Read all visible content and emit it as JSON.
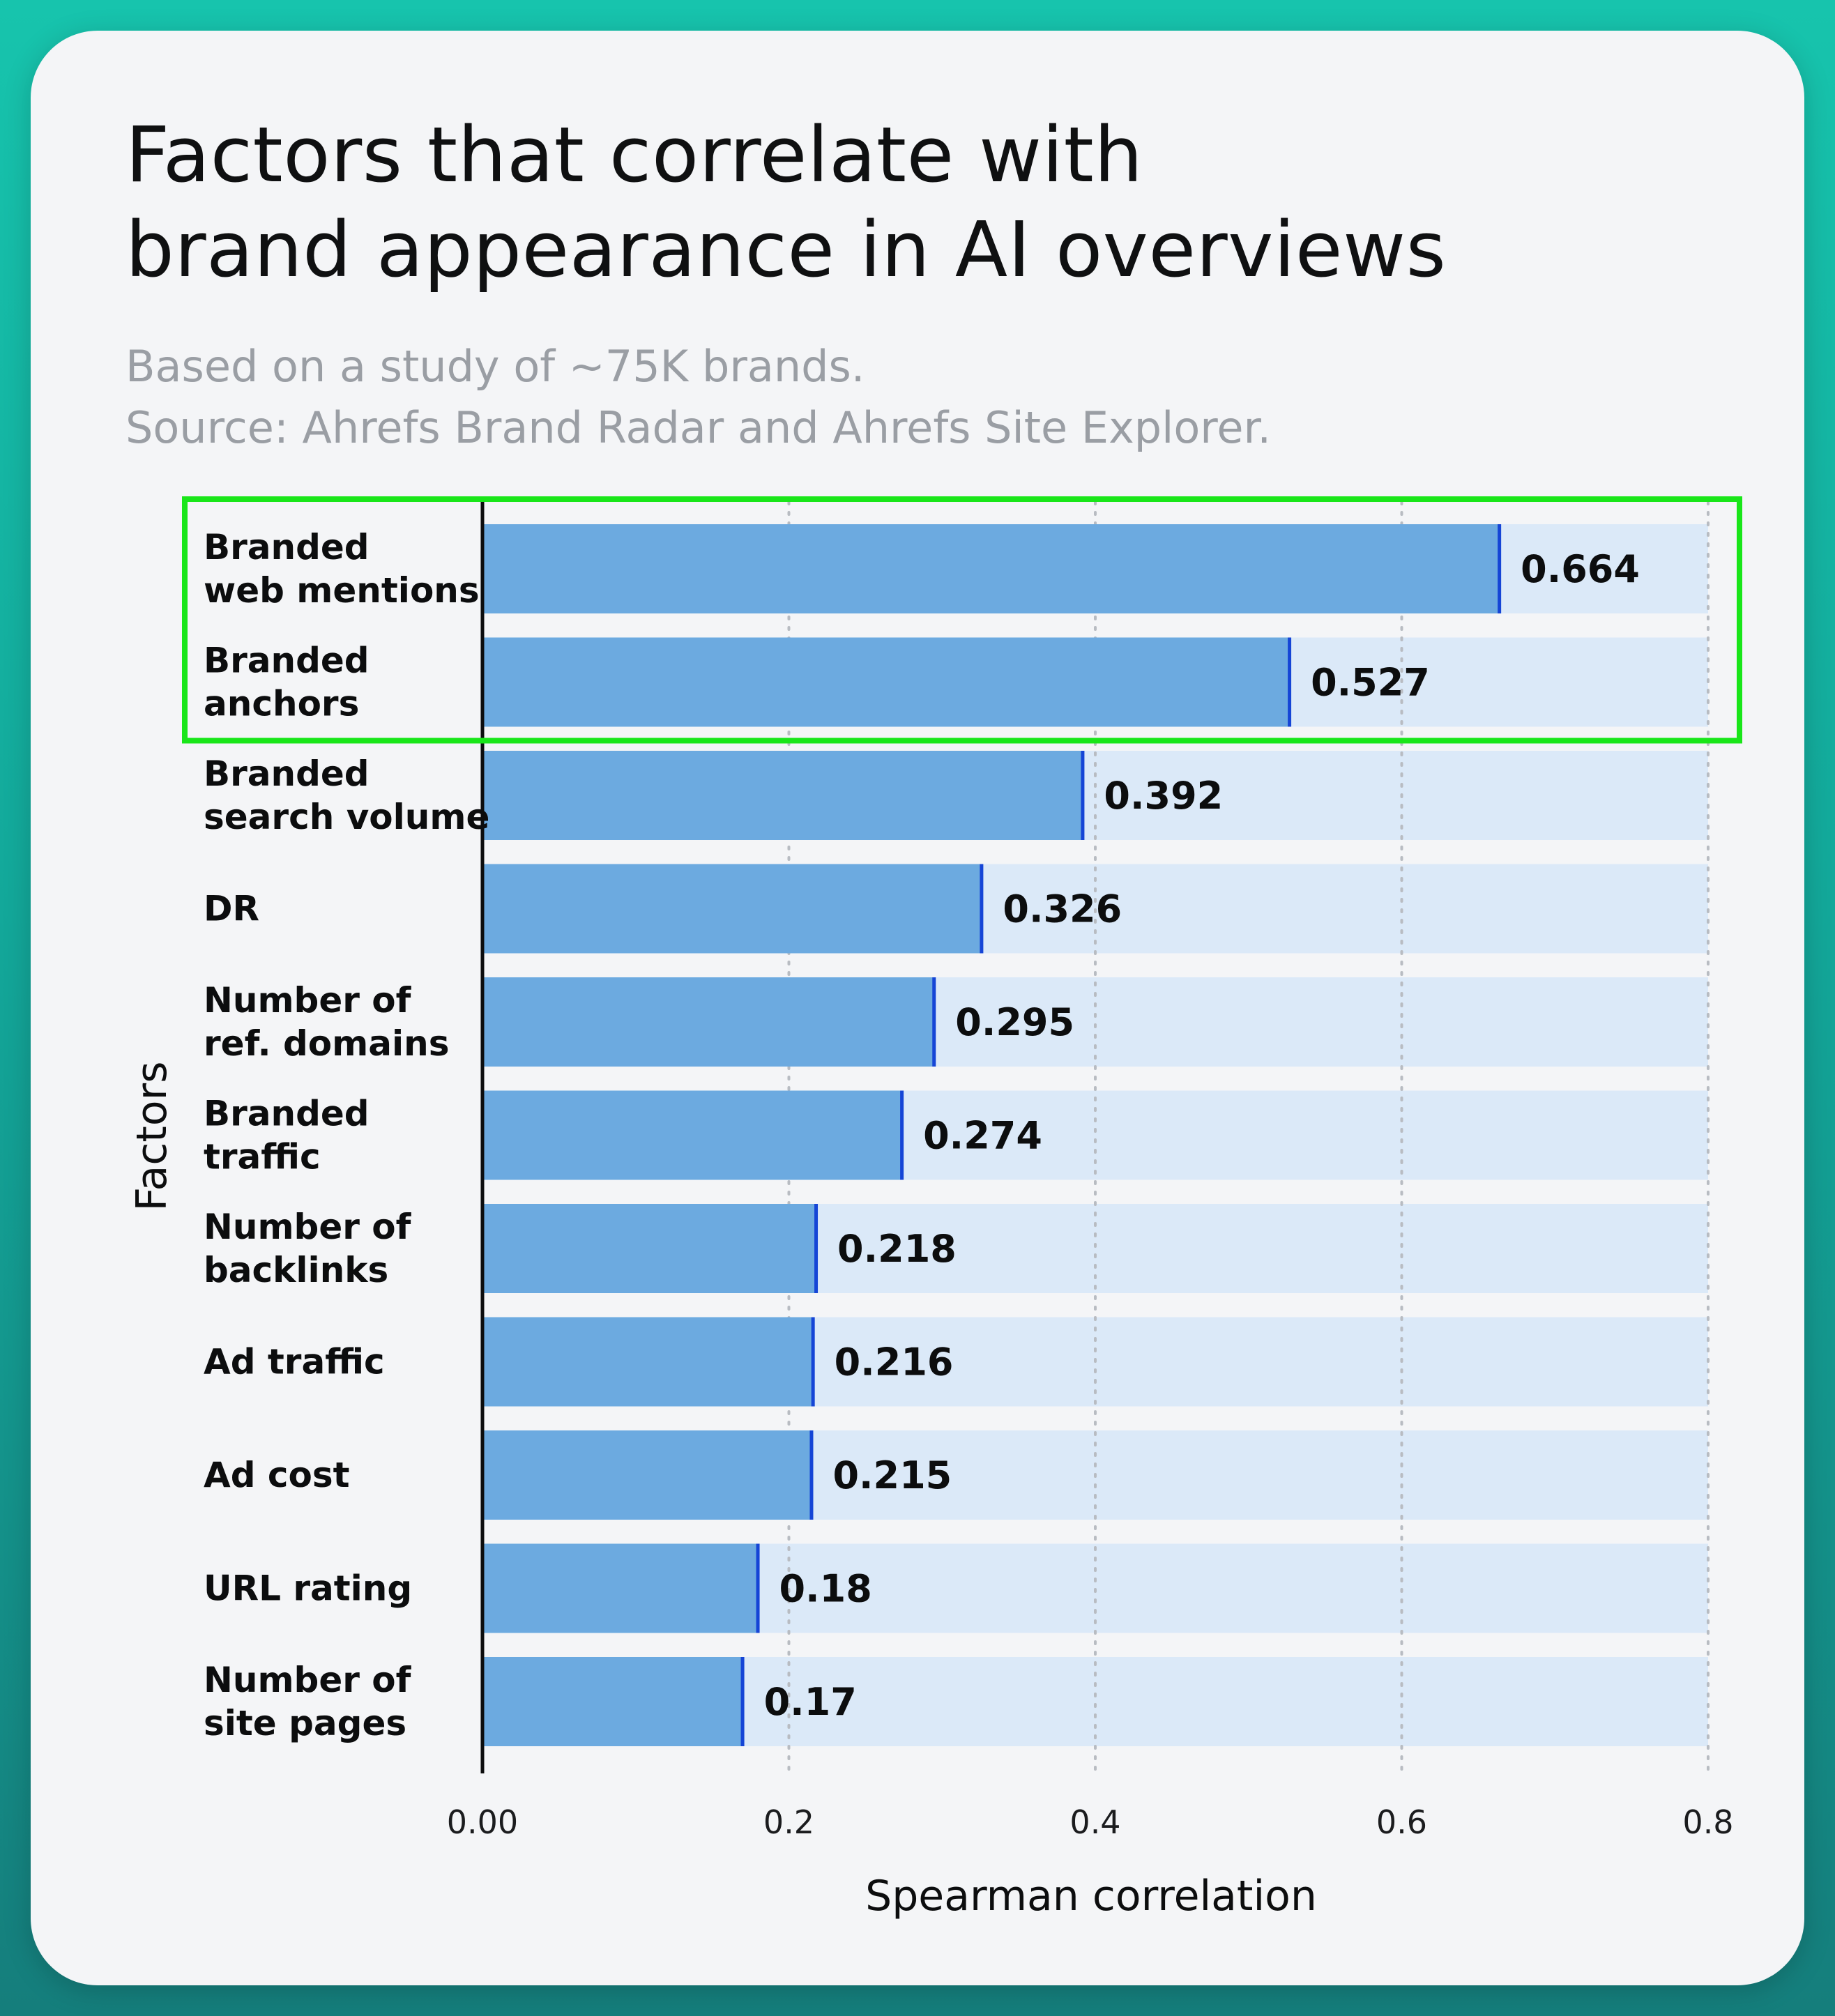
{
  "chart_data": {
    "type": "bar",
    "orientation": "horizontal",
    "title": "Factors that correlate with brand appearance in AI overviews",
    "title_lines": [
      "Factors that correlate with",
      "brand appearance in AI overviews"
    ],
    "subtitle_lines": [
      "Based on a study of ~75K brands.",
      "Source: Ahrefs Brand Radar and Ahrefs Site Explorer."
    ],
    "xlabel": "Spearman correlation",
    "ylabel": "Factors",
    "xlim": [
      0,
      0.8
    ],
    "xticks": [
      0,
      0.2,
      0.4,
      0.6,
      0.8
    ],
    "xtick_labels": [
      "0.00",
      "0.2",
      "0.4",
      "0.6",
      "0.8"
    ],
    "grid": "vertical dotted",
    "categories": [
      [
        "Branded",
        "web mentions"
      ],
      [
        "Branded",
        "anchors"
      ],
      [
        "Branded",
        "search volume"
      ],
      [
        "DR"
      ],
      [
        "Number of",
        "ref. domains"
      ],
      [
        "Branded",
        "traffic"
      ],
      [
        "Number of",
        "backlinks"
      ],
      [
        "Ad traffic"
      ],
      [
        "Ad cost"
      ],
      [
        "URL rating"
      ],
      [
        "Number of",
        "site pages"
      ]
    ],
    "values": [
      0.664,
      0.527,
      0.392,
      0.326,
      0.295,
      0.274,
      0.218,
      0.216,
      0.215,
      0.18,
      0.17
    ],
    "value_labels": [
      "0.664",
      "0.527",
      "0.392",
      "0.326",
      "0.295",
      "0.274",
      "0.218",
      "0.216",
      "0.215",
      "0.18",
      "0.17"
    ],
    "highlighted_indices": [
      0,
      1
    ],
    "colors": {
      "bar": "#6caae0",
      "track": "#dbe9f8",
      "bar_edge": "#1545d6",
      "highlight_box": "#19e619",
      "axis": "#0c0d0e",
      "grid": "#b8bcc2"
    }
  }
}
